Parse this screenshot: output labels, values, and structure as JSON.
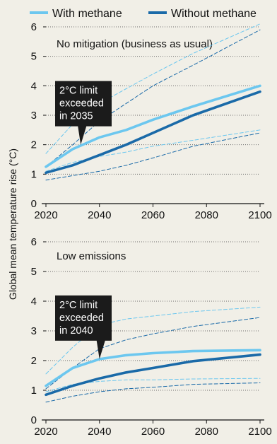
{
  "legend": {
    "with_label": "With methane",
    "without_label": "Without methane"
  },
  "colors": {
    "with": "#6cc7ef",
    "without": "#1a6aa8",
    "background": "#f1efe7",
    "grid": "#6e6e6e",
    "callout_bg": "#1b1b1b",
    "callout_text": "#ffffff"
  },
  "ylabel": "Global mean temperature rise (°C)",
  "chart_data": [
    {
      "type": "line",
      "title": "No mitigation (business as usual)",
      "xlim": [
        2020,
        2100
      ],
      "ylim": [
        0,
        6
      ],
      "xticks": [
        2020,
        2040,
        2060,
        2080,
        2100
      ],
      "yticks": [
        0,
        1,
        2,
        3,
        4,
        5,
        6
      ],
      "grid": "horizontal dotted",
      "series": [
        {
          "name": "With methane",
          "role": "with",
          "style": "solid",
          "x": [
            2020,
            2030,
            2040,
            2050,
            2060,
            2075,
            2100
          ],
          "y": [
            1.25,
            1.85,
            2.25,
            2.5,
            2.85,
            3.3,
            4.0
          ]
        },
        {
          "name": "Without methane",
          "role": "without",
          "style": "solid",
          "x": [
            2020,
            2030,
            2040,
            2050,
            2060,
            2075,
            2100
          ],
          "y": [
            1.05,
            1.3,
            1.65,
            2.0,
            2.4,
            3.0,
            3.8
          ]
        },
        {
          "role": "with",
          "style": "dashed",
          "x": [
            2020,
            2030,
            2040,
            2050,
            2060,
            2075,
            2100
          ],
          "y": [
            1.7,
            2.7,
            3.4,
            3.9,
            4.4,
            5.1,
            6.1
          ]
        },
        {
          "role": "with",
          "style": "dashed",
          "x": [
            2020,
            2030,
            2040,
            2050,
            2060,
            2075,
            2100
          ],
          "y": [
            1.1,
            1.4,
            1.6,
            1.75,
            1.95,
            2.15,
            2.5
          ]
        },
        {
          "role": "without",
          "style": "dashed",
          "x": [
            2020,
            2030,
            2040,
            2050,
            2060,
            2075,
            2100
          ],
          "y": [
            1.25,
            2.0,
            2.8,
            3.4,
            4.0,
            4.7,
            5.9
          ]
        },
        {
          "role": "without",
          "style": "dashed",
          "x": [
            2020,
            2030,
            2040,
            2050,
            2060,
            2075,
            2100
          ],
          "y": [
            0.8,
            0.95,
            1.1,
            1.3,
            1.55,
            1.95,
            2.4
          ]
        }
      ],
      "callout": {
        "lines": [
          "2°C limit",
          "exceeded",
          "in 2035"
        ],
        "x": 2033,
        "y": 2.0
      }
    },
    {
      "type": "line",
      "title": "Low emissions",
      "xlim": [
        2020,
        2100
      ],
      "ylim": [
        0,
        6
      ],
      "xticks": [
        2020,
        2040,
        2060,
        2080,
        2100
      ],
      "yticks": [
        0,
        1,
        2,
        3,
        4,
        5,
        6
      ],
      "grid": "horizontal dotted",
      "series": [
        {
          "name": "With methane",
          "role": "with",
          "style": "solid",
          "x": [
            2020,
            2030,
            2040,
            2050,
            2060,
            2075,
            2100
          ],
          "y": [
            1.15,
            1.75,
            2.05,
            2.18,
            2.25,
            2.32,
            2.35
          ]
        },
        {
          "name": "Without methane",
          "role": "without",
          "style": "solid",
          "x": [
            2020,
            2030,
            2040,
            2050,
            2060,
            2075,
            2100
          ],
          "y": [
            0.85,
            1.15,
            1.4,
            1.6,
            1.75,
            1.98,
            2.2
          ]
        },
        {
          "role": "with",
          "style": "dashed",
          "x": [
            2020,
            2030,
            2040,
            2050,
            2060,
            2075,
            2100
          ],
          "y": [
            1.55,
            2.45,
            3.2,
            3.4,
            3.5,
            3.65,
            3.8
          ]
        },
        {
          "role": "with",
          "style": "dashed",
          "x": [
            2020,
            2030,
            2040,
            2050,
            2060,
            2075,
            2100
          ],
          "y": [
            0.95,
            1.2,
            1.3,
            1.35,
            1.35,
            1.38,
            1.4
          ]
        },
        {
          "role": "without",
          "style": "dashed",
          "x": [
            2020,
            2030,
            2040,
            2050,
            2060,
            2075,
            2100
          ],
          "y": [
            1.05,
            1.75,
            2.4,
            2.7,
            2.9,
            3.15,
            3.45
          ]
        },
        {
          "role": "without",
          "style": "dashed",
          "x": [
            2020,
            2030,
            2040,
            2050,
            2060,
            2075,
            2100
          ],
          "y": [
            0.6,
            0.8,
            0.95,
            1.05,
            1.1,
            1.2,
            1.25
          ]
        }
      ],
      "callout": {
        "lines": [
          "2°C limit",
          "exceeded",
          "in 2040"
        ],
        "x": 2040,
        "y": 2.05
      }
    }
  ]
}
